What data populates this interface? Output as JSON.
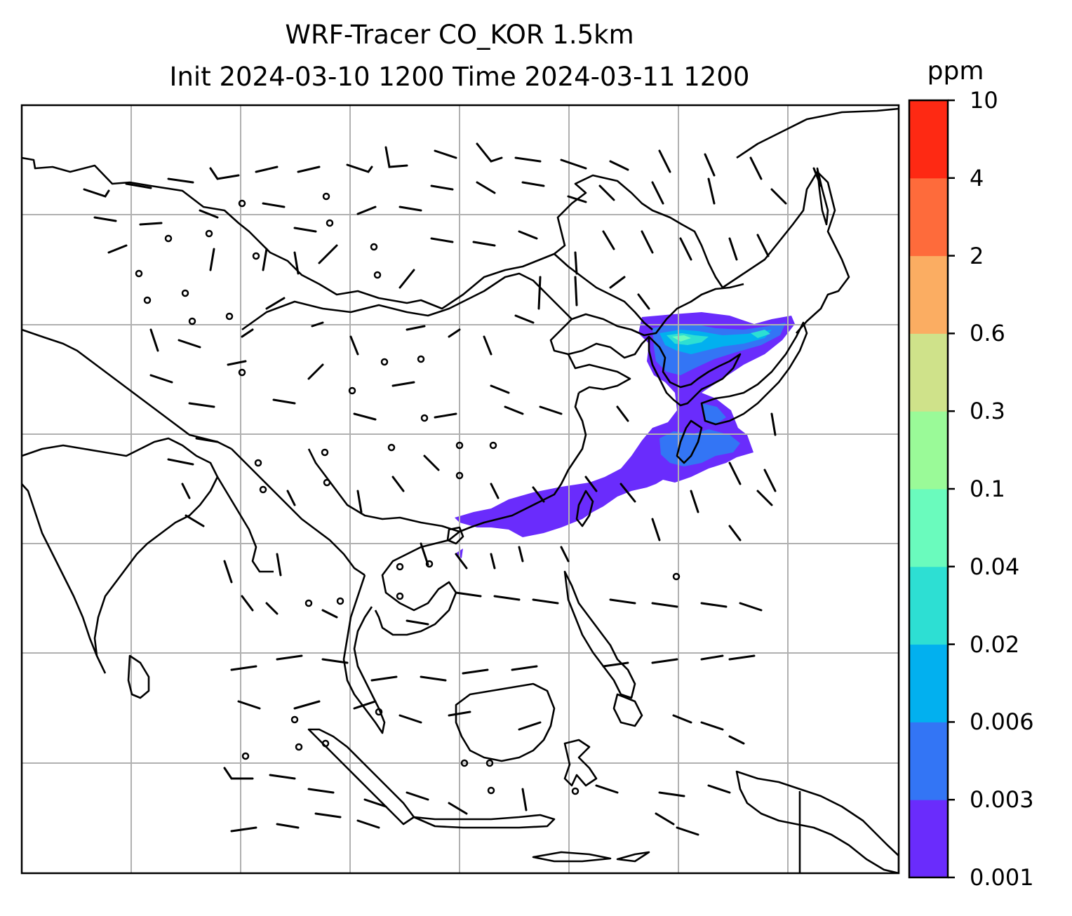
{
  "title": {
    "line1": "WRF-Tracer CO_KOR 1.5km",
    "line2": "Init 2024-03-10 1200 Time 2024-03-11 1200"
  },
  "colorbar": {
    "unit": "ppm",
    "levels": [
      "0.001",
      "0.003",
      "0.006",
      "0.02",
      "0.04",
      "0.1",
      "0.3",
      "0.6",
      "2",
      "4",
      "10"
    ],
    "colors": [
      "#6a2cfc",
      "#3375f5",
      "#02b0ef",
      "#2ddfd3",
      "#6afbbd",
      "#9afa98",
      "#cfe28a",
      "#fbad62",
      "#fe6b3b",
      "#fe2913"
    ]
  },
  "map": {
    "type": "contourf + wind barbs",
    "gridlines": true,
    "coastlines": true,
    "tracer_plume": "CO tracer concentration over Korea, Yellow Sea and eastern/southern China, mostly 0.001–0.04 ppm",
    "ocean_color": "#ffffff",
    "line_color": "#000000",
    "grid_color": "#b0b0b0"
  }
}
